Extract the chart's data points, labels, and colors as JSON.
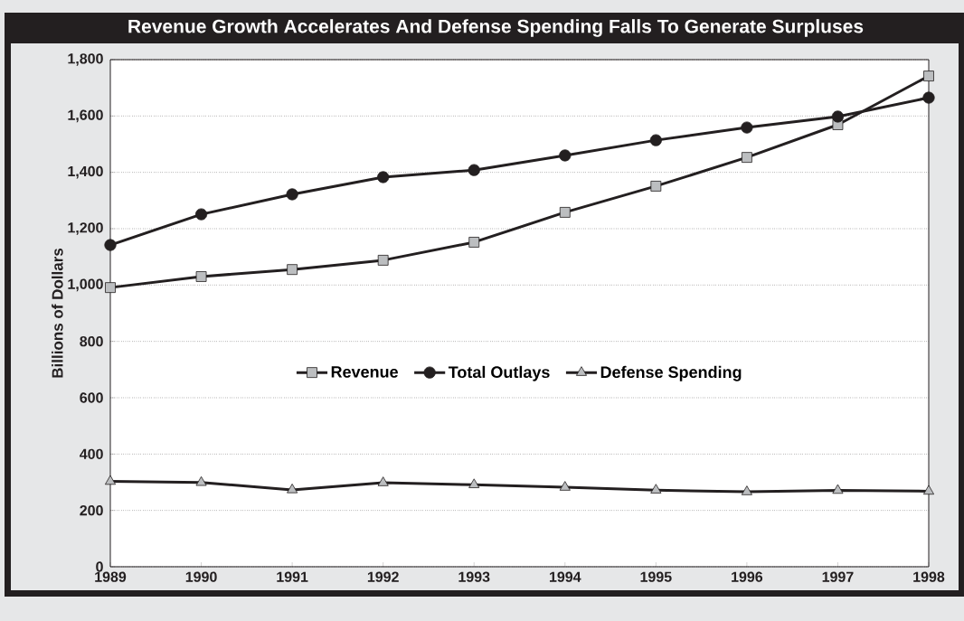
{
  "chart_data": {
    "type": "line",
    "title": "Revenue Growth Accelerates And Defense Spending Falls To Generate Surpluses",
    "ylabel": "Billions of Dollars",
    "categories": [
      "1989",
      "1990",
      "1991",
      "1992",
      "1993",
      "1994",
      "1995",
      "1996",
      "1997",
      "1998"
    ],
    "series": [
      {
        "name": "Revenue",
        "color": "#bcbec0",
        "marker": "square",
        "values": [
          991,
          1030,
          1055,
          1088,
          1152,
          1258,
          1351,
          1453,
          1569,
          1742
        ]
      },
      {
        "name": "Total Outlays",
        "color": "#231f20",
        "marker": "circle",
        "values": [
          1142,
          1251,
          1322,
          1383,
          1408,
          1460,
          1514,
          1559,
          1598,
          1665
        ]
      },
      {
        "name": "Defense Spending",
        "color": "#bcbec0",
        "marker": "triangle",
        "values": [
          303,
          299,
          273,
          298,
          291,
          282,
          272,
          266,
          271,
          268
        ]
      }
    ],
    "ylim": [
      0,
      1800
    ],
    "yticks": [
      0,
      200,
      400,
      600,
      800,
      {
        "value": 1000,
        "label": "1,000"
      },
      {
        "value": 1200,
        "label": "1,200"
      },
      {
        "value": 1400,
        "label": "1,400"
      },
      {
        "value": 1600,
        "label": "1,600"
      },
      {
        "value": 1800,
        "label": "1,800"
      }
    ],
    "grid": "y",
    "legend": "center",
    "line_style": "solid"
  }
}
